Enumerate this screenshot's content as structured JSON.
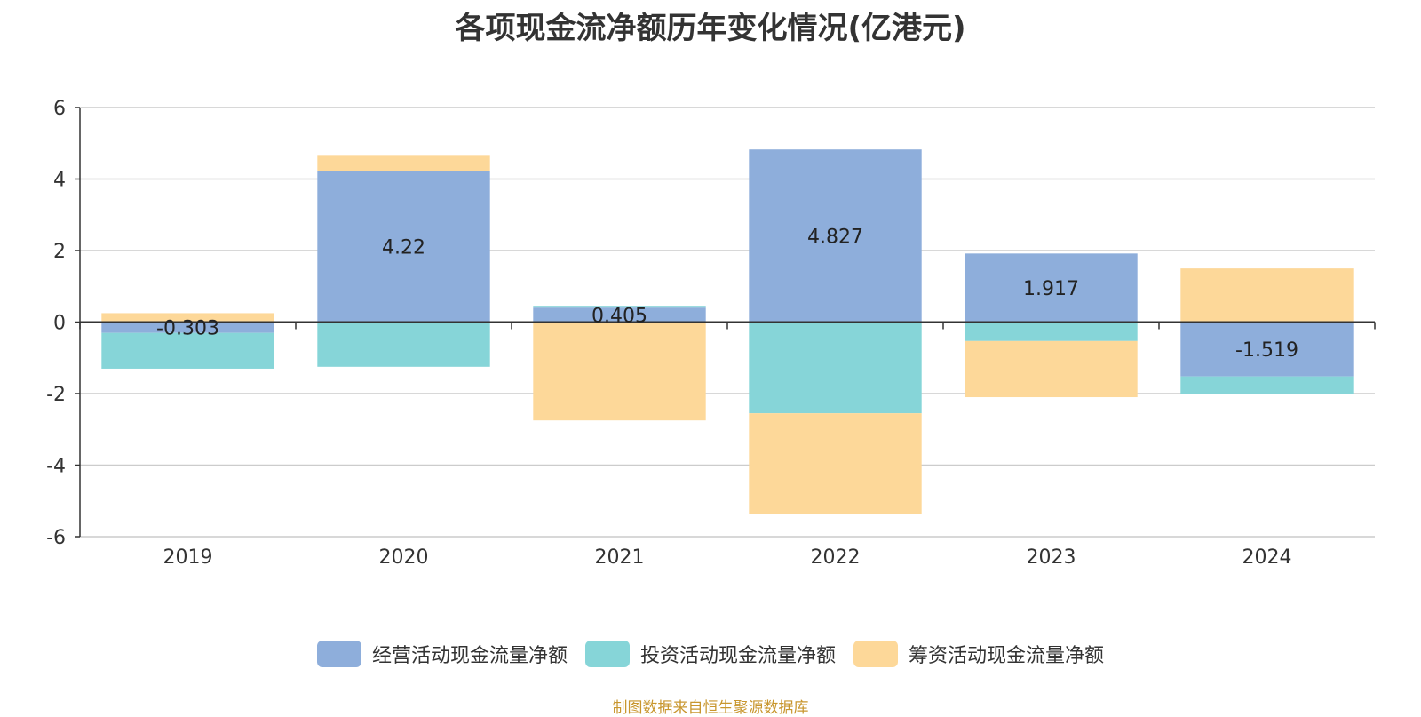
{
  "title": "各项现金流净额历年变化情况(亿港元)",
  "source": "制图数据来自恒生聚源数据库",
  "chart_data": {
    "type": "bar",
    "stacked": true,
    "title": "各项现金流净额历年变化情况(亿港元)",
    "categories": [
      "2019",
      "2020",
      "2021",
      "2022",
      "2023",
      "2024"
    ],
    "ylim": [
      -6,
      6
    ],
    "yticks": [
      "6",
      "4",
      "2",
      "0",
      "-2",
      "-4",
      "-6"
    ],
    "grid": true,
    "legend_position": "bottom",
    "series": [
      {
        "name": "经营活动现金流量净额",
        "color": "#8eaedb",
        "values": [
          -0.303,
          4.22,
          0.405,
          4.827,
          1.917,
          -1.519
        ],
        "labels": [
          "-0.303",
          "4.22",
          "0.405",
          "4.827",
          "1.917",
          "-1.519"
        ]
      },
      {
        "name": "投资活动现金流量净额",
        "color": "#86d5d8",
        "values": [
          -1.0,
          -1.25,
          0.05,
          -2.55,
          -0.53,
          -0.5
        ]
      },
      {
        "name": "筹资活动现金流量净额",
        "color": "#fdd899",
        "values": [
          0.25,
          0.43,
          -2.75,
          -2.82,
          -1.57,
          1.5
        ]
      }
    ]
  }
}
